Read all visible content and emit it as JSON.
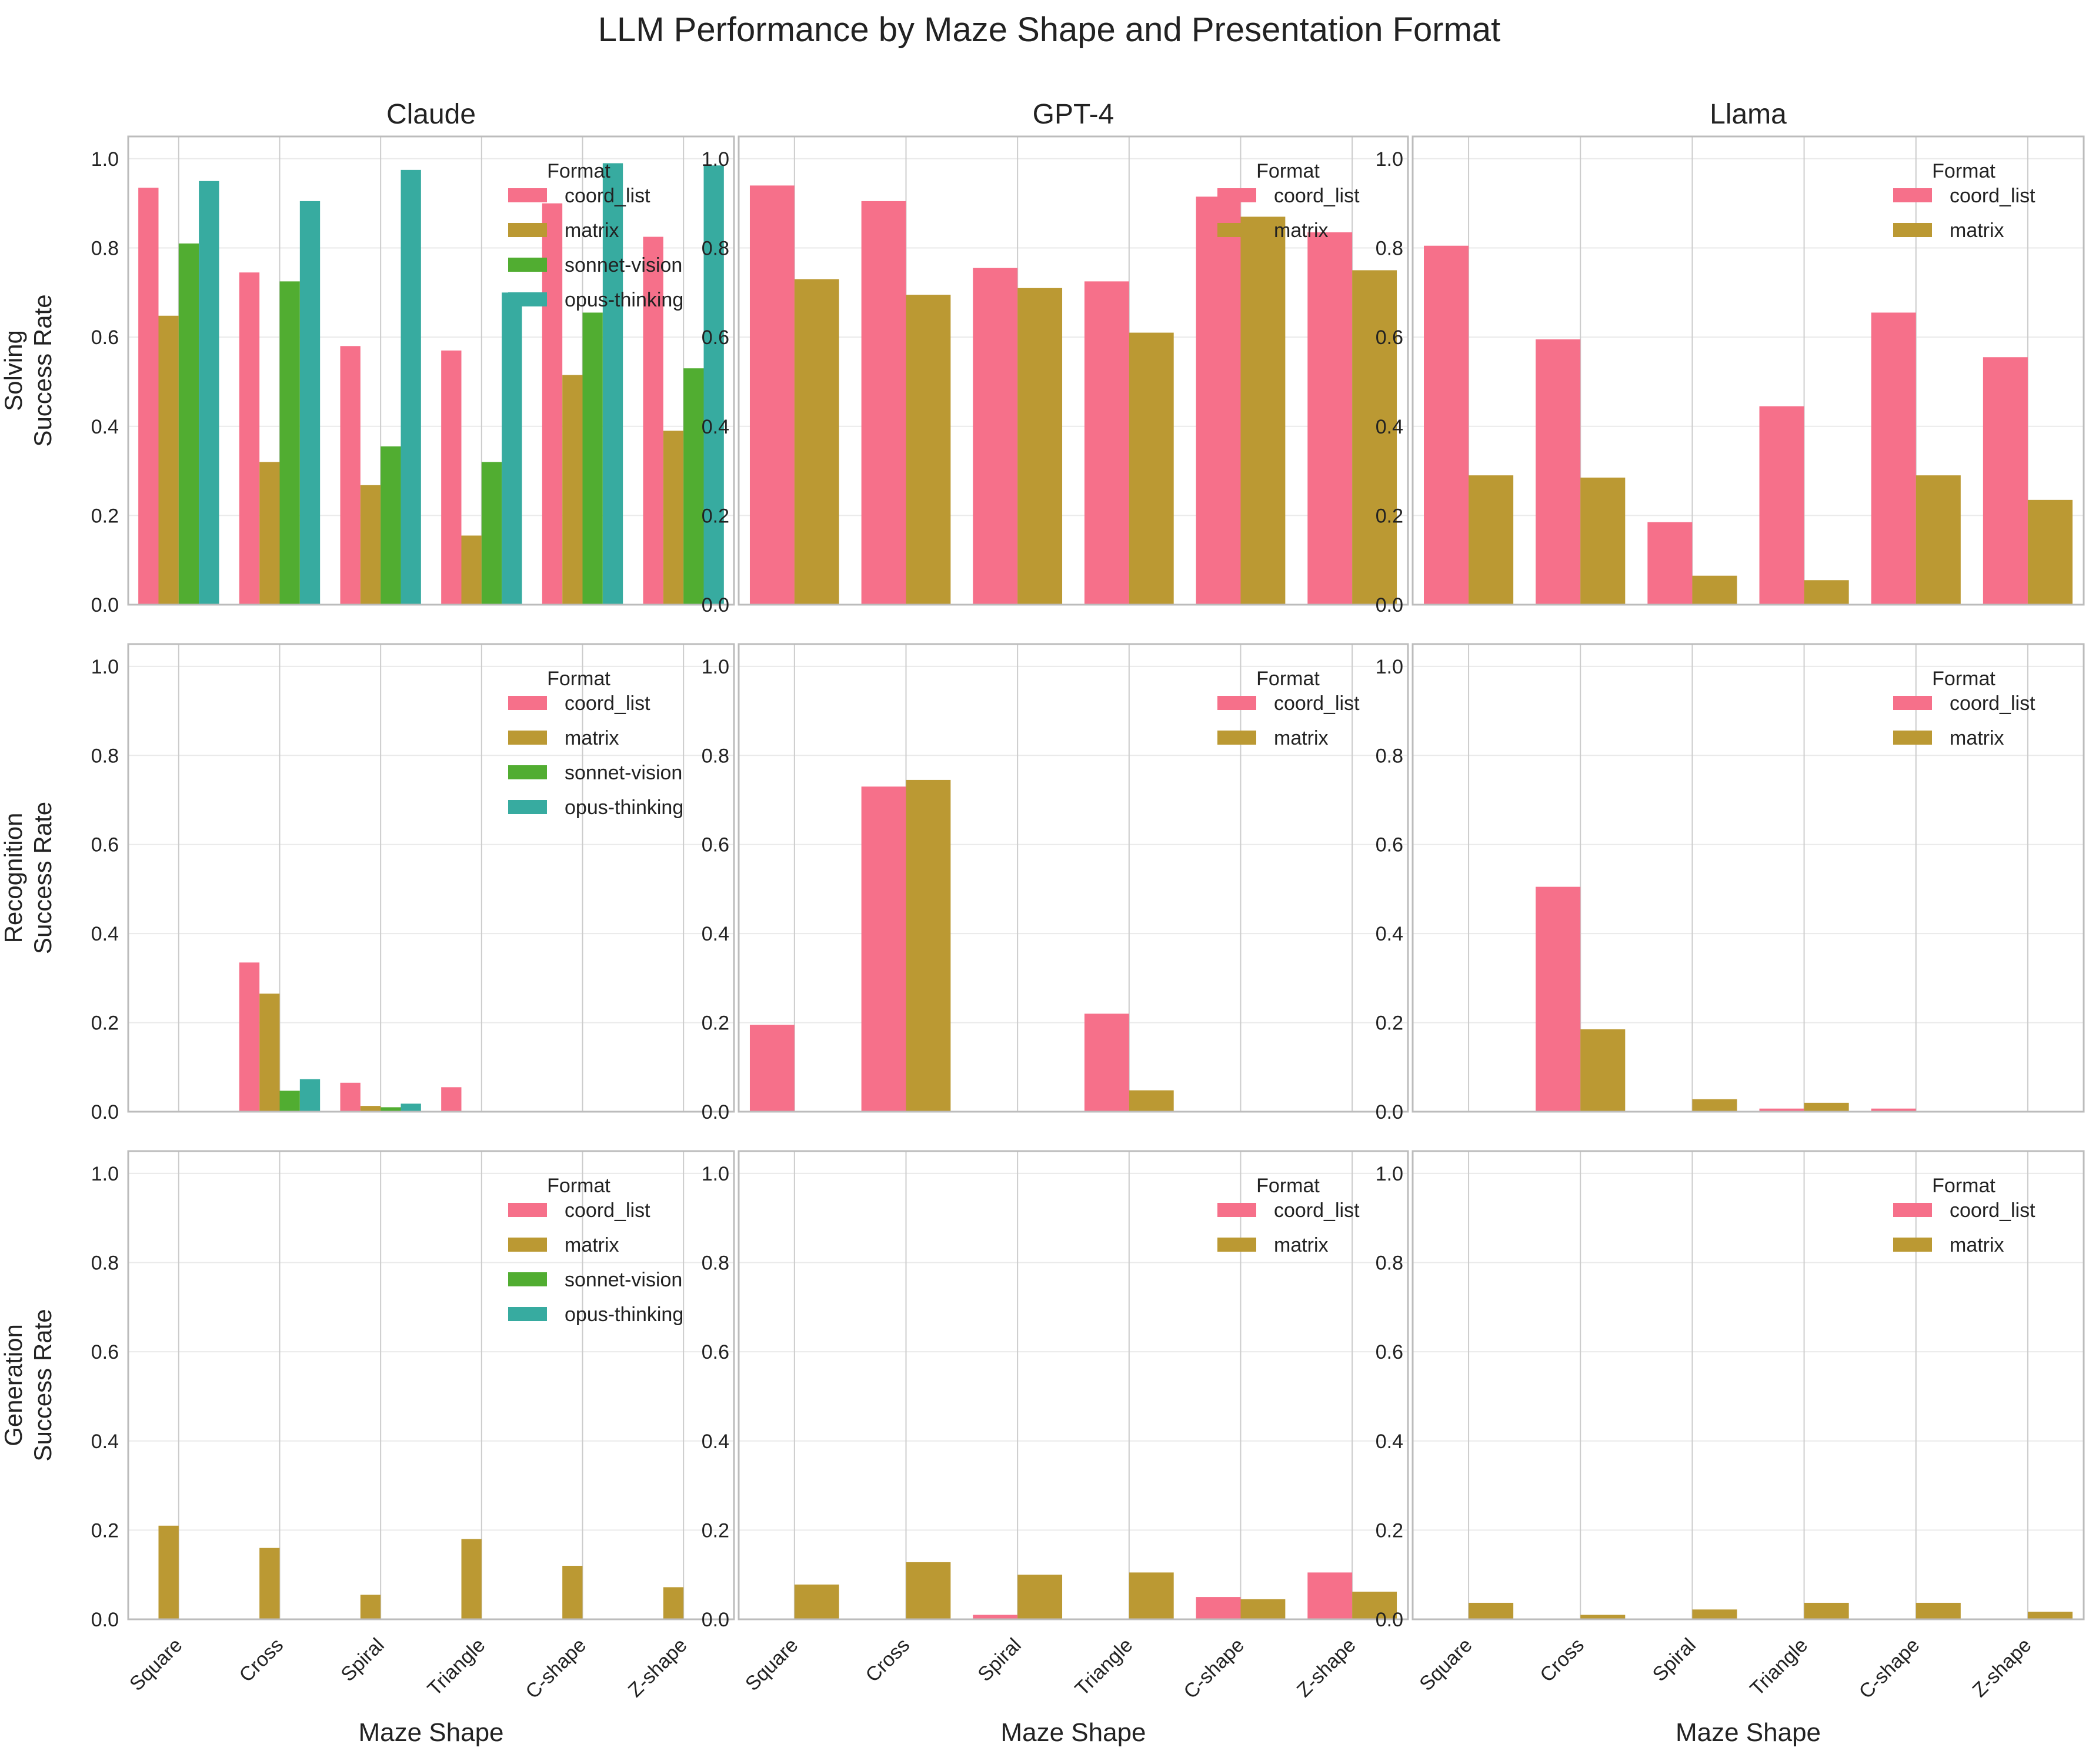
{
  "title": "LLM Performance by Maze Shape and Presentation Format",
  "colors": {
    "coord_list": "#f6708a",
    "matrix": "#bb9933",
    "sonnet-vision": "#51ad31",
    "opus-thinking": "#37aba0",
    "frame": "#bcbcbc",
    "grid": "#eaeaea",
    "text": "#222222"
  },
  "chart_data": [
    {
      "type": "bar",
      "model": "Claude",
      "task": "Solving",
      "title": "Claude",
      "ylabel": "Solving\nSuccess Rate",
      "xlabel": "",
      "ylim": [
        0,
        1.05
      ],
      "grid": true,
      "legend": {
        "title": "Format",
        "placement": "top-right"
      },
      "categories": [
        "Square",
        "Cross",
        "Spiral",
        "Triangle",
        "C-shape",
        "Z-shape"
      ],
      "series": [
        {
          "name": "coord_list",
          "values": [
            0.935,
            0.745,
            0.58,
            0.57,
            0.9,
            0.825
          ]
        },
        {
          "name": "matrix",
          "values": [
            0.648,
            0.32,
            0.268,
            0.155,
            0.515,
            0.39
          ]
        },
        {
          "name": "sonnet-vision",
          "values": [
            0.81,
            0.725,
            0.355,
            0.32,
            0.655,
            0.53
          ]
        },
        {
          "name": "opus-thinking",
          "values": [
            0.95,
            0.905,
            0.975,
            0.7,
            0.99,
            0.985
          ]
        }
      ]
    },
    {
      "type": "bar",
      "model": "GPT-4",
      "task": "Solving",
      "title": "GPT-4",
      "ylabel": "",
      "xlabel": "",
      "ylim": [
        0,
        1.05
      ],
      "grid": true,
      "legend": {
        "title": "Format",
        "placement": "top-right"
      },
      "categories": [
        "Square",
        "Cross",
        "Spiral",
        "Triangle",
        "C-shape",
        "Z-shape"
      ],
      "series": [
        {
          "name": "coord_list",
          "values": [
            0.94,
            0.905,
            0.755,
            0.725,
            0.915,
            0.835
          ]
        },
        {
          "name": "matrix",
          "values": [
            0.73,
            0.695,
            0.71,
            0.61,
            0.87,
            0.75
          ]
        }
      ]
    },
    {
      "type": "bar",
      "model": "Llama",
      "task": "Solving",
      "title": "Llama",
      "ylabel": "",
      "xlabel": "",
      "ylim": [
        0,
        1.05
      ],
      "grid": true,
      "legend": {
        "title": "Format",
        "placement": "top-right"
      },
      "categories": [
        "Square",
        "Cross",
        "Spiral",
        "Triangle",
        "C-shape",
        "Z-shape"
      ],
      "series": [
        {
          "name": "coord_list",
          "values": [
            0.805,
            0.595,
            0.185,
            0.445,
            0.655,
            0.555
          ]
        },
        {
          "name": "matrix",
          "values": [
            0.29,
            0.285,
            0.065,
            0.055,
            0.29,
            0.235
          ]
        }
      ]
    },
    {
      "type": "bar",
      "model": "Claude",
      "task": "Recognition",
      "title": "",
      "ylabel": "Recognition\nSuccess Rate",
      "xlabel": "",
      "ylim": [
        0,
        1.05
      ],
      "grid": true,
      "legend": {
        "title": "Format",
        "placement": "top-right"
      },
      "categories": [
        "Square",
        "Cross",
        "Spiral",
        "Triangle",
        "C-shape",
        "Z-shape"
      ],
      "series": [
        {
          "name": "coord_list",
          "values": [
            0,
            0.335,
            0.065,
            0.055,
            0,
            0
          ]
        },
        {
          "name": "matrix",
          "values": [
            0,
            0.265,
            0.013,
            0,
            0,
            0
          ]
        },
        {
          "name": "sonnet-vision",
          "values": [
            0,
            0.047,
            0.01,
            0,
            0,
            0
          ]
        },
        {
          "name": "opus-thinking",
          "values": [
            0,
            0.073,
            0.018,
            0,
            0,
            0
          ]
        }
      ]
    },
    {
      "type": "bar",
      "model": "GPT-4",
      "task": "Recognition",
      "title": "",
      "ylabel": "",
      "xlabel": "",
      "ylim": [
        0,
        1.05
      ],
      "grid": true,
      "legend": {
        "title": "Format",
        "placement": "top-right"
      },
      "categories": [
        "Square",
        "Cross",
        "Spiral",
        "Triangle",
        "C-shape",
        "Z-shape"
      ],
      "series": [
        {
          "name": "coord_list",
          "values": [
            0.195,
            0.73,
            0,
            0.22,
            0,
            0
          ]
        },
        {
          "name": "matrix",
          "values": [
            0,
            0.745,
            0,
            0.048,
            0,
            0
          ]
        }
      ]
    },
    {
      "type": "bar",
      "model": "Llama",
      "task": "Recognition",
      "title": "",
      "ylabel": "",
      "xlabel": "",
      "ylim": [
        0,
        1.05
      ],
      "grid": true,
      "legend": {
        "title": "Format",
        "placement": "top-right"
      },
      "categories": [
        "Square",
        "Cross",
        "Spiral",
        "Triangle",
        "C-shape",
        "Z-shape"
      ],
      "series": [
        {
          "name": "coord_list",
          "values": [
            0,
            0.505,
            0,
            0.007,
            0.007,
            0
          ]
        },
        {
          "name": "matrix",
          "values": [
            0,
            0.185,
            0.028,
            0.02,
            0,
            0
          ]
        }
      ]
    },
    {
      "type": "bar",
      "model": "Claude",
      "task": "Generation",
      "title": "",
      "ylabel": "Generation\nSuccess Rate",
      "xlabel": "Maze Shape",
      "ylim": [
        0,
        1.05
      ],
      "grid": true,
      "legend": {
        "title": "Format",
        "placement": "top-right"
      },
      "categories": [
        "Square",
        "Cross",
        "Spiral",
        "Triangle",
        "C-shape",
        "Z-shape"
      ],
      "series": [
        {
          "name": "coord_list",
          "values": [
            0,
            0,
            0,
            0,
            0,
            0
          ]
        },
        {
          "name": "matrix",
          "values": [
            0.21,
            0.16,
            0.055,
            0.18,
            0.12,
            0.072
          ]
        },
        {
          "name": "sonnet-vision",
          "values": [
            0,
            0,
            0,
            0,
            0,
            0
          ]
        },
        {
          "name": "opus-thinking",
          "values": [
            0,
            0,
            0,
            0,
            0,
            0
          ]
        }
      ]
    },
    {
      "type": "bar",
      "model": "GPT-4",
      "task": "Generation",
      "title": "",
      "ylabel": "",
      "xlabel": "Maze Shape",
      "ylim": [
        0,
        1.05
      ],
      "grid": true,
      "legend": {
        "title": "Format",
        "placement": "top-right"
      },
      "categories": [
        "Square",
        "Cross",
        "Spiral",
        "Triangle",
        "C-shape",
        "Z-shape"
      ],
      "series": [
        {
          "name": "coord_list",
          "values": [
            0,
            0,
            0.01,
            0,
            0.05,
            0.105
          ]
        },
        {
          "name": "matrix",
          "values": [
            0.078,
            0.128,
            0.1,
            0.105,
            0.045,
            0.062
          ]
        }
      ]
    },
    {
      "type": "bar",
      "model": "Llama",
      "task": "Generation",
      "title": "",
      "ylabel": "",
      "xlabel": "Maze Shape",
      "ylim": [
        0,
        1.05
      ],
      "grid": true,
      "legend": {
        "title": "Format",
        "placement": "top-right"
      },
      "categories": [
        "Square",
        "Cross",
        "Spiral",
        "Triangle",
        "C-shape",
        "Z-shape"
      ],
      "series": [
        {
          "name": "coord_list",
          "values": [
            0,
            0,
            0,
            0,
            0,
            0
          ]
        },
        {
          "name": "matrix",
          "values": [
            0.037,
            0.01,
            0.022,
            0.037,
            0.037,
            0.017
          ]
        }
      ]
    }
  ]
}
